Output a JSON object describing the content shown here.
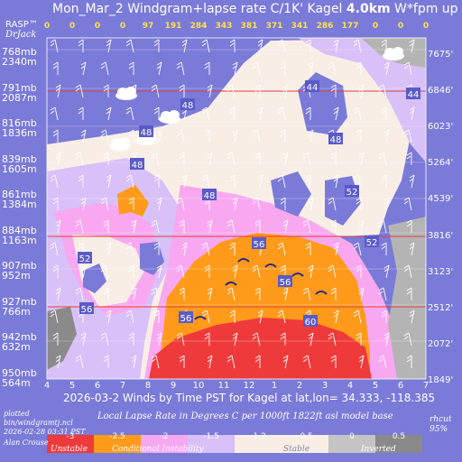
{
  "header": {
    "title_prefix": "Mon_Mar_2 Windgram+lapse rate C/1K'  Kagel ",
    "title_height": "4.0km",
    "title_suffix": "  W*fpm up"
  },
  "branding": {
    "rasp": "RASP™",
    "drjack": "DrJack"
  },
  "chart_data": {
    "type": "heatmap",
    "title": "Mon_Mar_2 Windgram+lapse rate C/1K'  Kagel 4.0km  W*fpm up",
    "x_ticks": [
      "4",
      "5",
      "6",
      "7",
      "8",
      "9",
      "10",
      "11",
      "12",
      "1",
      "2",
      "3",
      "4",
      "5",
      "6",
      "7"
    ],
    "xlabel": "2026-03-2 Winds by Time PST for Kagel at lat,lon= 34.333, -118.385",
    "wstar_fpm": [
      "0",
      "0",
      "0",
      "0",
      "97",
      "191",
      "284",
      "343",
      "381",
      "371",
      "341",
      "286",
      "177",
      "0",
      "0",
      "0"
    ],
    "pressure_levels": [
      {
        "mb": "768mb",
        "m": "2340m"
      },
      {
        "mb": "791mb",
        "m": "2087m"
      },
      {
        "mb": "816mb",
        "m": "1836m"
      },
      {
        "mb": "839mb",
        "m": "1605m"
      },
      {
        "mb": "861mb",
        "m": "1384m"
      },
      {
        "mb": "884mb",
        "m": "1163m"
      },
      {
        "mb": "907mb",
        "m": "952m"
      },
      {
        "mb": "927mb",
        "m": "766m"
      },
      {
        "mb": "942mb",
        "m": "632m"
      },
      {
        "mb": "950mb",
        "m": "564m"
      }
    ],
    "altitude_ft": [
      "7675'",
      "6846'",
      "6023'",
      "5264'",
      "4539'",
      "3816'",
      "3123'",
      "2512'",
      "2072'",
      "1849'"
    ],
    "rh_labels": [
      "44",
      "48",
      "44",
      "48",
      "48",
      "48",
      "48",
      "52",
      "52",
      "56",
      "52",
      "56",
      "56",
      "56",
      "60"
    ],
    "legend": {
      "caption": "Local Lapse Rate in Degrees C per 1000ft   1822ft asl model base",
      "ticks": [
        "-3",
        "-2.5",
        "-2",
        "-1.5",
        "-1.2",
        "-0.5",
        "0",
        "0.5"
      ],
      "categories": [
        "Unstable",
        "Conditional Instability",
        "Stable",
        "Inverted"
      ],
      "colors": [
        "#ee3a3a",
        "#ff9a1a",
        "#f8a8f0",
        "#d8c0f8",
        "#f8eee6",
        "#f8eee6",
        "#c4c4c4",
        "#8a8a8a"
      ],
      "rhcut": [
        "rhcut",
        "95%"
      ]
    }
  },
  "footer": {
    "plotted": "plotted",
    "script": "bin/windgramtj.ncl",
    "date": "2026-02-28 03:31 PST",
    "author": "Alan Crouse"
  }
}
